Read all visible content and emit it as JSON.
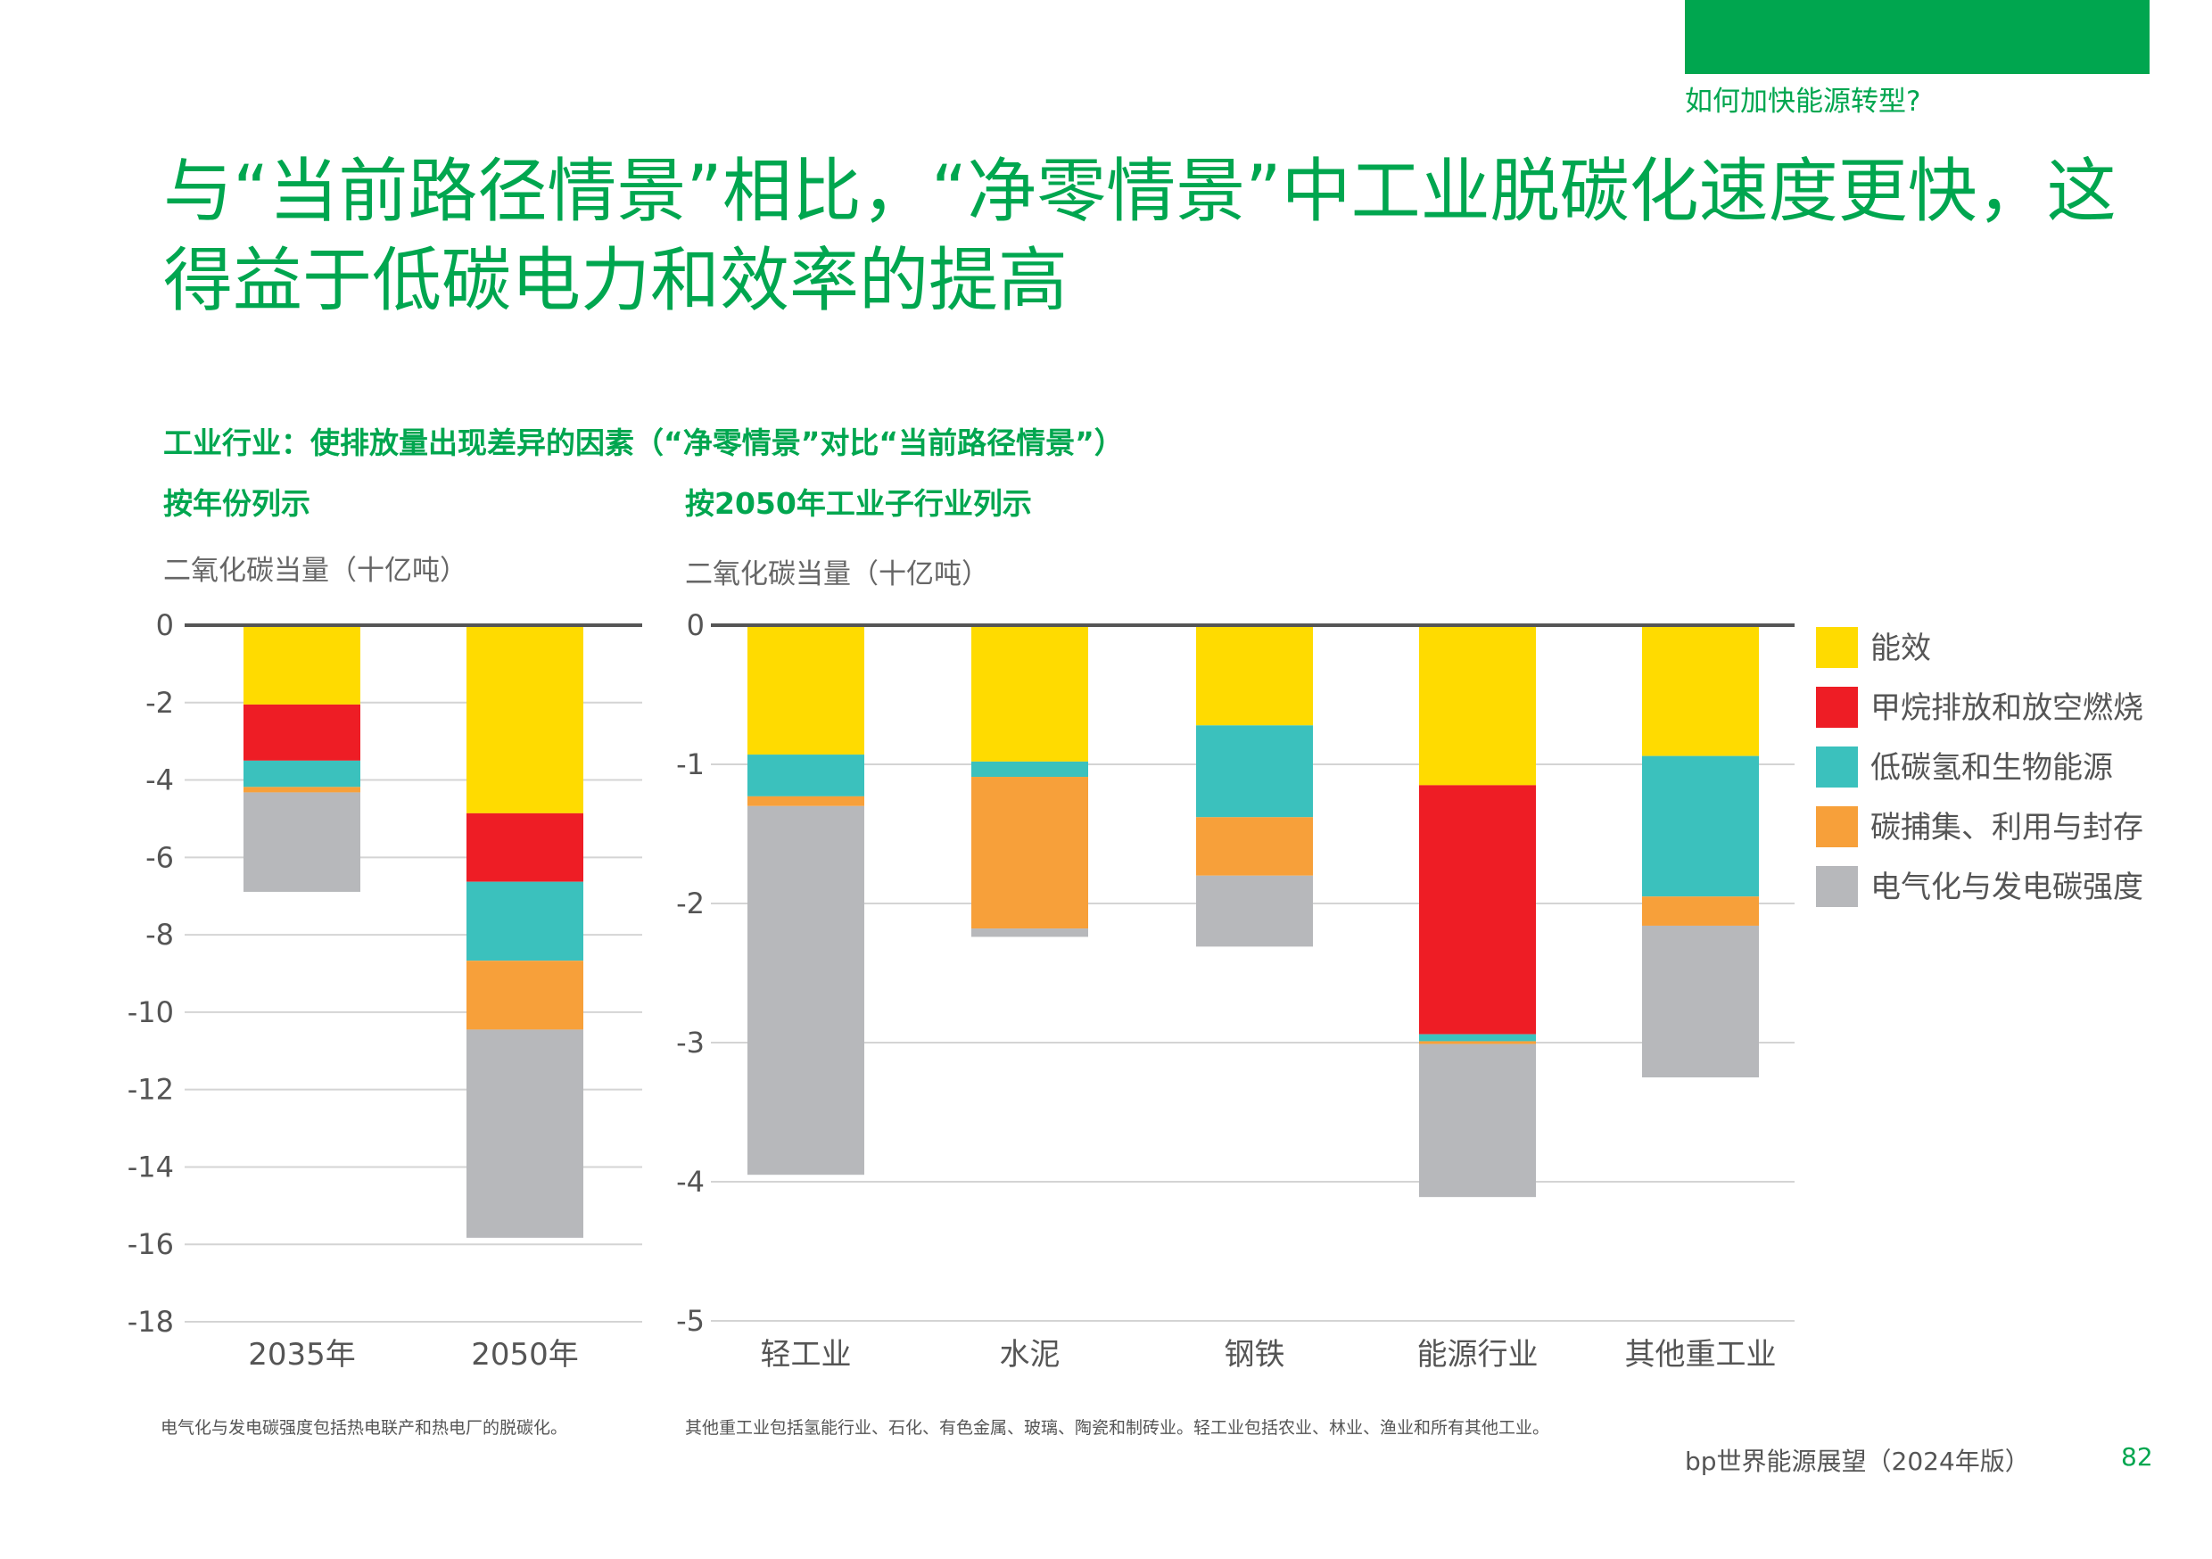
{
  "header": {
    "section": "如何加快能源转型?",
    "title": "与“当前路径情景”相比，“净零情景”中工业脱碳化速度更快，这得益于低碳电力和效率的提高"
  },
  "figure": {
    "subtitle": "工业行业：使排放量出现差异的因素（“净零情景”对比“当前路径情景”）"
  },
  "colors": {
    "brand": "#00a64f"
  },
  "chart_data": [
    {
      "type": "bar",
      "stacked": true,
      "panel_title": "按年份列示",
      "ylabel": "二氧化碳当量（十亿吨）",
      "ylim": [
        -18,
        0
      ],
      "yticks": [
        "0",
        "-2",
        "-4",
        "-6",
        "-8",
        "-10",
        "-12",
        "-14",
        "-16",
        "-18"
      ],
      "ytick_values": [
        0,
        -2,
        -4,
        -6,
        -8,
        -10,
        -12,
        -14,
        -16,
        -18
      ],
      "categories": [
        "2035年",
        "2050年"
      ],
      "grid": true,
      "series": [
        {
          "name": "能效",
          "color": "#ffdb00",
          "values": [
            -2.05,
            -4.86
          ]
        },
        {
          "name": "甲烷排放和放空燃烧",
          "color": "#ee1d25",
          "values": [
            -1.45,
            -1.77
          ]
        },
        {
          "name": "低碳氢和生物能源",
          "color": "#3bc1bd",
          "values": [
            -0.68,
            -2.04
          ]
        },
        {
          "name": "碳捕集、利用与封存",
          "color": "#f7a03a",
          "values": [
            -0.14,
            -1.78
          ]
        },
        {
          "name": "电气化与发电碳强度",
          "color": "#b7b8bb",
          "values": [
            -2.57,
            -5.38
          ]
        }
      ],
      "footnote": "电气化与发电碳强度包括热电联产和热电厂的脱碳化。"
    },
    {
      "type": "bar",
      "stacked": true,
      "panel_title": "按2050年工业子行业列示",
      "ylabel": "二氧化碳当量（十亿吨）",
      "ylim": [
        -5,
        0
      ],
      "yticks": [
        "0",
        "-1",
        "-2",
        "-3",
        "-4",
        "-5"
      ],
      "ytick_values": [
        0,
        -1,
        -2,
        -3,
        -4,
        -5
      ],
      "categories": [
        "轻工业",
        "水泥",
        "钢铁",
        "能源行业",
        "其他重工业"
      ],
      "grid": true,
      "legend": "right",
      "series": [
        {
          "name": "能效",
          "color": "#ffdb00",
          "values": [
            -0.93,
            -0.98,
            -0.72,
            -1.15,
            -0.94
          ]
        },
        {
          "name": "甲烷排放和放空燃烧",
          "color": "#ee1d25",
          "values": [
            0,
            0,
            0,
            -1.79,
            0
          ]
        },
        {
          "name": "低碳氢和生物能源",
          "color": "#3bc1bd",
          "values": [
            -0.3,
            -0.11,
            -0.66,
            -0.05,
            -1.01
          ]
        },
        {
          "name": "碳捕集、利用与封存",
          "color": "#f7a03a",
          "values": [
            -0.07,
            -1.09,
            -0.42,
            -0.02,
            -0.21
          ]
        },
        {
          "name": "电气化与发电碳强度",
          "color": "#b7b8bb",
          "values": [
            -2.65,
            -0.06,
            -0.51,
            -1.1,
            -1.09
          ]
        }
      ],
      "footnote": "其他重工业包括氢能行业、石化、有色金属、玻璃、陶瓷和制砖业。轻工业包括农业、林业、渔业和所有其他工业。"
    }
  ],
  "footer": {
    "publication": "bp世界能源展望（2024年版）",
    "page": "82"
  }
}
